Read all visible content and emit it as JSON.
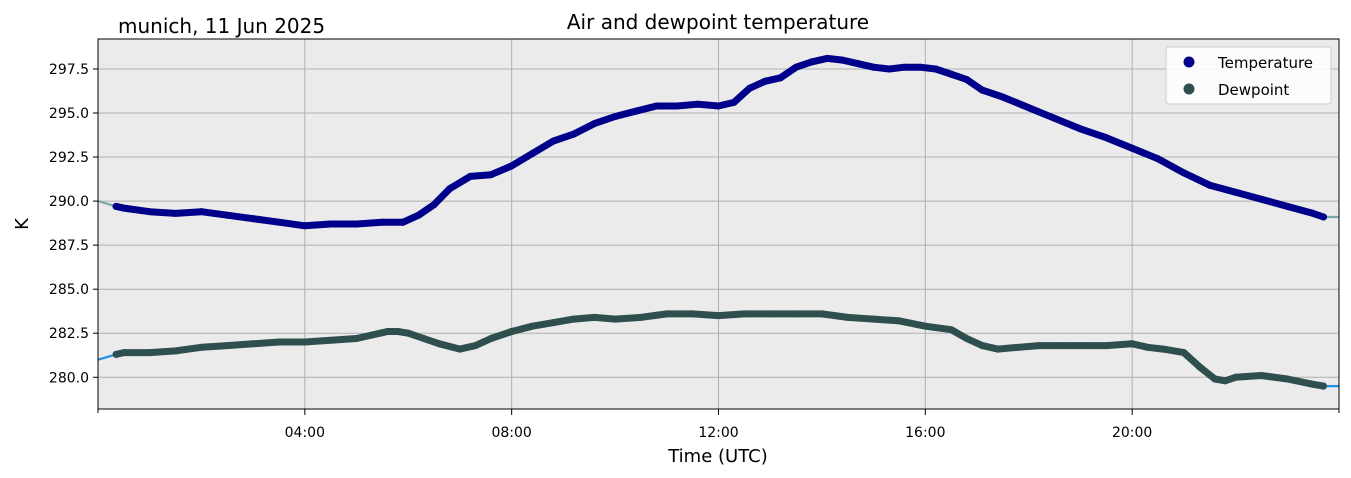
{
  "chart_data": {
    "type": "line",
    "title": "Air and dewpoint temperature",
    "subtitle": "munich, 11 Jun 2025",
    "xlabel": "Time (UTC)",
    "ylabel": "K",
    "xlim": [
      0,
      24
    ],
    "ylim": [
      278.2,
      299.2
    ],
    "x_ticks": [
      4,
      8,
      12,
      16,
      20
    ],
    "x_tick_labels": [
      "04:00",
      "08:00",
      "12:00",
      "16:00",
      "20:00"
    ],
    "x_minor_ticks": [
      0,
      24
    ],
    "y_ticks": [
      280.0,
      282.5,
      285.0,
      287.5,
      290.0,
      292.5,
      295.0,
      297.5
    ],
    "y_tick_labels": [
      "280.0",
      "282.5",
      "285.0",
      "287.5",
      "290.0",
      "292.5",
      "295.0",
      "297.5"
    ],
    "grid": true,
    "legend_position": "top-right",
    "colors": {
      "temperature": "#00008b",
      "temperature_raw": "#7aa8a8",
      "dewpoint": "#2f4f4f",
      "dewpoint_raw": "#1e90e6",
      "plot_background": "#ebebeb",
      "grid": "#b0b0b0"
    },
    "series": [
      {
        "name": "Temperature",
        "x": [
          0.0,
          0.35,
          0.5,
          1.0,
          1.5,
          2.0,
          2.5,
          3.0,
          3.5,
          4.0,
          4.5,
          5.0,
          5.5,
          5.9,
          6.2,
          6.5,
          6.8,
          7.2,
          7.6,
          8.0,
          8.4,
          8.8,
          9.2,
          9.6,
          10.0,
          10.4,
          10.8,
          11.2,
          11.6,
          12.0,
          12.3,
          12.6,
          12.9,
          13.2,
          13.5,
          13.8,
          14.1,
          14.4,
          14.7,
          15.0,
          15.3,
          15.6,
          15.9,
          16.2,
          16.5,
          16.8,
          17.1,
          17.5,
          18.0,
          18.5,
          19.0,
          19.5,
          20.0,
          20.5,
          21.0,
          21.5,
          22.0,
          22.5,
          23.0,
          23.5,
          23.7,
          24.0
        ],
        "values": [
          290.0,
          289.7,
          289.6,
          289.4,
          289.3,
          289.4,
          289.2,
          289.0,
          288.8,
          288.6,
          288.7,
          288.7,
          288.8,
          288.8,
          289.2,
          289.8,
          290.7,
          291.4,
          291.5,
          292.0,
          292.7,
          293.4,
          293.8,
          294.4,
          294.8,
          295.1,
          295.4,
          295.4,
          295.5,
          295.4,
          295.6,
          296.4,
          296.8,
          297.0,
          297.6,
          297.9,
          298.1,
          298.0,
          297.8,
          297.6,
          297.5,
          297.6,
          297.6,
          297.5,
          297.2,
          296.9,
          296.3,
          295.9,
          295.3,
          294.7,
          294.1,
          293.6,
          293.0,
          292.4,
          291.6,
          290.9,
          290.5,
          290.1,
          289.7,
          289.3,
          289.1,
          289.1
        ]
      },
      {
        "name": "Dewpoint",
        "x": [
          0.0,
          0.35,
          0.5,
          1.0,
          1.5,
          2.0,
          2.5,
          3.0,
          3.5,
          4.0,
          4.5,
          5.0,
          5.3,
          5.6,
          5.8,
          6.0,
          6.3,
          6.6,
          7.0,
          7.3,
          7.6,
          8.0,
          8.4,
          8.8,
          9.2,
          9.6,
          10.0,
          10.5,
          11.0,
          11.5,
          12.0,
          12.5,
          13.0,
          13.5,
          14.0,
          14.5,
          15.0,
          15.5,
          16.0,
          16.5,
          16.8,
          17.1,
          17.4,
          17.8,
          18.2,
          18.6,
          19.0,
          19.5,
          20.0,
          20.3,
          20.6,
          21.0,
          21.3,
          21.6,
          21.8,
          22.0,
          22.5,
          23.0,
          23.5,
          23.7,
          24.0
        ],
        "values": [
          281.0,
          281.3,
          281.4,
          281.4,
          281.5,
          281.7,
          281.8,
          281.9,
          282.0,
          282.0,
          282.1,
          282.2,
          282.4,
          282.6,
          282.6,
          282.5,
          282.2,
          281.9,
          281.6,
          281.8,
          282.2,
          282.6,
          282.9,
          283.1,
          283.3,
          283.4,
          283.3,
          283.4,
          283.6,
          283.6,
          283.5,
          283.6,
          283.6,
          283.6,
          283.6,
          283.4,
          283.3,
          283.2,
          282.9,
          282.7,
          282.2,
          281.8,
          281.6,
          281.7,
          281.8,
          281.8,
          281.8,
          281.8,
          281.9,
          281.7,
          281.6,
          281.4,
          280.6,
          279.9,
          279.8,
          280.0,
          280.1,
          279.9,
          279.6,
          279.5,
          279.5
        ]
      }
    ]
  }
}
